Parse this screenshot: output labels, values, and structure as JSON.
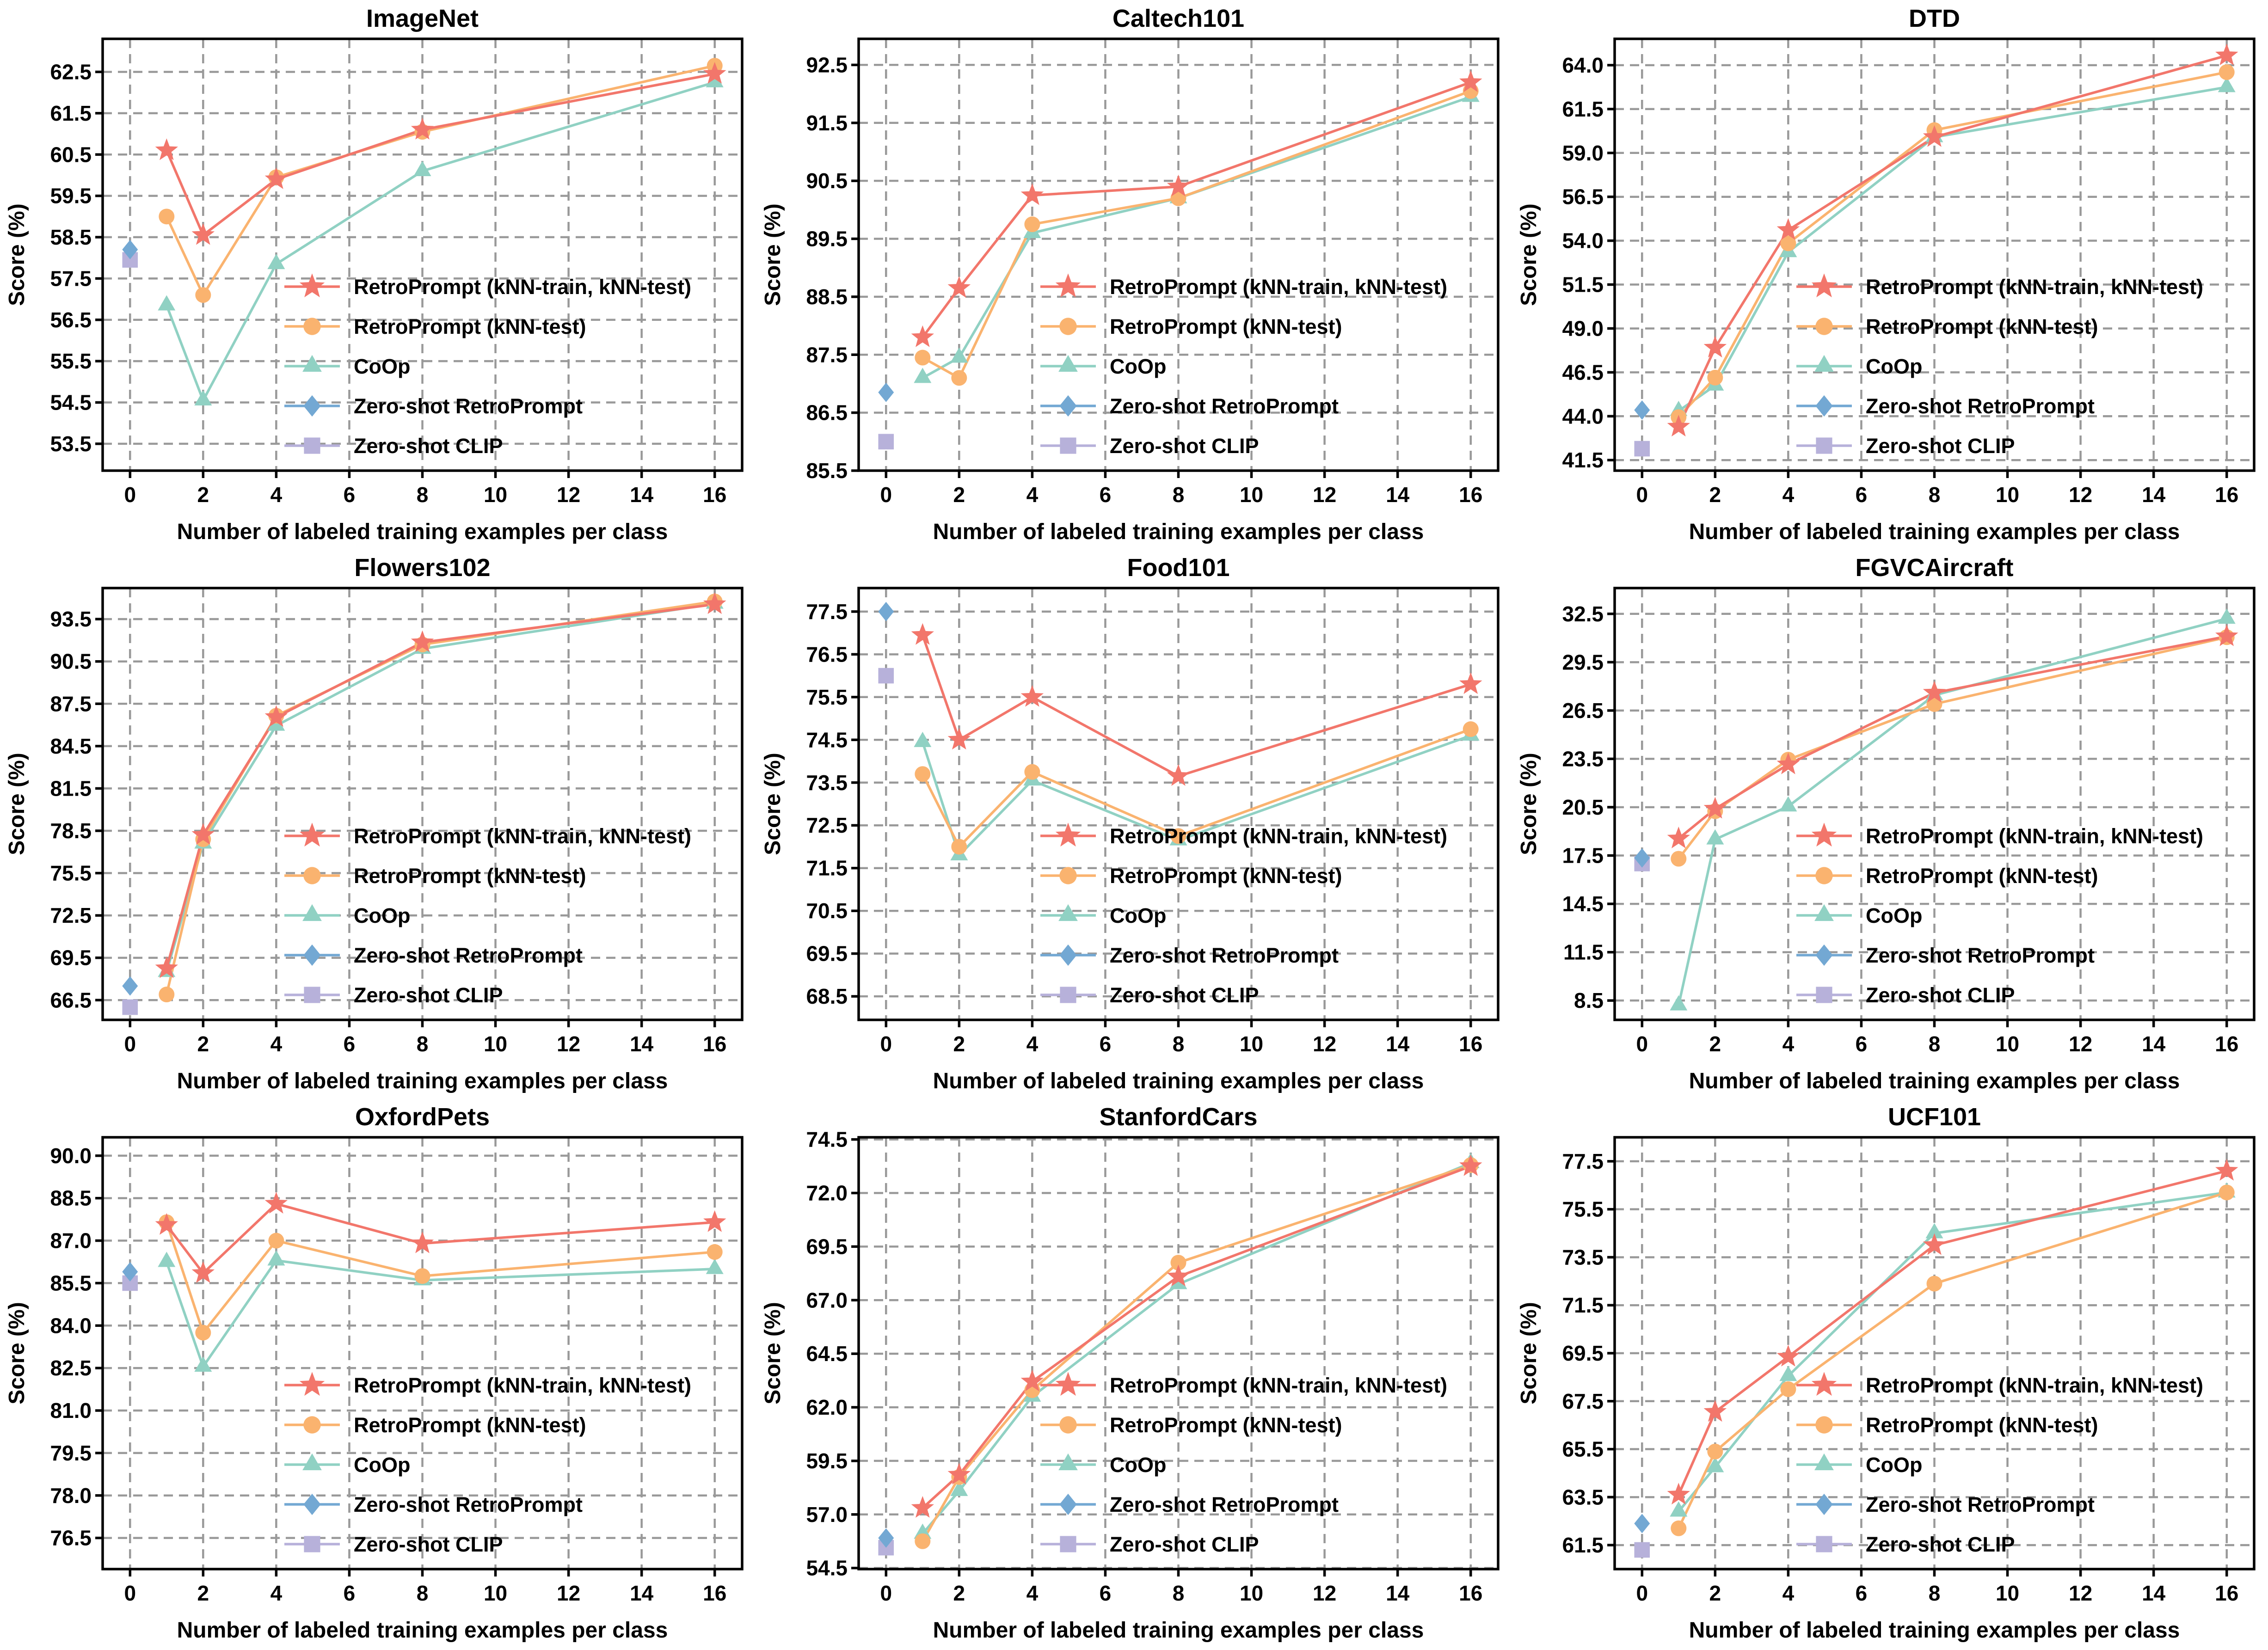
{
  "figure": {
    "background": "#ffffff",
    "axis_color": "#000000",
    "grid_color": "#999999",
    "grid_dashed": true,
    "xlabel": "Number of labeled training examples per class",
    "ylabel": "Score (%)",
    "x_ticks": [
      0,
      2,
      4,
      6,
      8,
      10,
      12,
      14,
      16
    ],
    "xlim": [
      -0.75,
      16.75
    ],
    "legend_position": "lower right",
    "legend": [
      {
        "key": "retroprompt_train_test",
        "label": "RetroPrompt (kNN-train, kNN-test)",
        "color": "#F2766B",
        "marker": "star"
      },
      {
        "key": "retroprompt_test",
        "label": "RetroPrompt (kNN-test)",
        "color": "#FAB36F",
        "marker": "circle"
      },
      {
        "key": "coop",
        "label": "CoOp",
        "color": "#90D1C3",
        "marker": "triangle"
      },
      {
        "key": "zero_shot_retroprompt",
        "label": "Zero-shot RetroPrompt",
        "color": "#73A8D3",
        "marker": "diamond"
      },
      {
        "key": "zero_shot_clip",
        "label": "Zero-shot CLIP",
        "color": "#B7B1DA",
        "marker": "square"
      }
    ]
  },
  "chart_data": [
    {
      "type": "line",
      "title": "ImageNet",
      "x": [
        1,
        2,
        4,
        8,
        16
      ],
      "y_ticks": [
        53.5,
        54.5,
        55.5,
        56.5,
        57.5,
        58.5,
        59.5,
        60.5,
        61.5,
        62.5
      ],
      "ylim": [
        52.85,
        63.3
      ],
      "series": {
        "retroprompt_train_test": [
          60.6,
          58.55,
          59.9,
          61.1,
          62.45
        ],
        "retroprompt_test": [
          59.0,
          57.1,
          59.95,
          61.05,
          62.65
        ],
        "coop": [
          56.85,
          54.55,
          57.85,
          60.1,
          62.25
        ],
        "zero_shot_retroprompt": 58.2,
        "zero_shot_clip": 57.95
      }
    },
    {
      "type": "line",
      "title": "Caltech101",
      "x": [
        1,
        2,
        4,
        8,
        16
      ],
      "y_ticks": [
        85.5,
        86.5,
        87.5,
        88.5,
        89.5,
        90.5,
        91.5,
        92.5
      ],
      "ylim": [
        85.5,
        92.95
      ],
      "series": {
        "retroprompt_train_test": [
          87.8,
          88.65,
          90.25,
          90.4,
          92.2
        ],
        "retroprompt_test": [
          87.45,
          87.1,
          89.75,
          90.2,
          92.05
        ],
        "coop": [
          87.1,
          87.45,
          89.6,
          90.2,
          91.95
        ],
        "zero_shot_retroprompt": 86.85,
        "zero_shot_clip": 86.0
      }
    },
    {
      "type": "line",
      "title": "DTD",
      "x": [
        1,
        2,
        4,
        8,
        16
      ],
      "y_ticks": [
        41.5,
        44.0,
        46.5,
        49.0,
        51.5,
        54.0,
        56.5,
        59.0,
        61.5,
        64.0
      ],
      "ylim": [
        40.9,
        65.5
      ],
      "series": {
        "retroprompt_train_test": [
          43.4,
          47.9,
          54.6,
          59.9,
          64.55
        ],
        "retroprompt_test": [
          43.95,
          46.2,
          53.85,
          60.3,
          63.6
        ],
        "coop": [
          44.3,
          45.75,
          53.35,
          59.9,
          62.75
        ],
        "zero_shot_retroprompt": 44.35,
        "zero_shot_clip": 42.15
      }
    },
    {
      "type": "line",
      "title": "Flowers102",
      "x": [
        1,
        2,
        4,
        8,
        16
      ],
      "y_ticks": [
        66.5,
        69.5,
        72.5,
        75.5,
        78.5,
        81.5,
        84.5,
        87.5,
        90.5,
        93.5
      ],
      "ylim": [
        65.1,
        95.7
      ],
      "series": {
        "retroprompt_train_test": [
          68.75,
          78.2,
          86.55,
          91.85,
          94.55
        ],
        "retroprompt_test": [
          66.9,
          77.9,
          86.65,
          91.7,
          94.75
        ],
        "coop": [
          68.5,
          77.6,
          85.95,
          91.4,
          94.6
        ],
        "zero_shot_retroprompt": 67.5,
        "zero_shot_clip": 66.0
      }
    },
    {
      "type": "line",
      "title": "Food101",
      "x": [
        1,
        2,
        4,
        8,
        16
      ],
      "y_ticks": [
        68.5,
        69.5,
        70.5,
        71.5,
        72.5,
        73.5,
        74.5,
        75.5,
        76.5,
        77.5
      ],
      "ylim": [
        67.95,
        78.05
      ],
      "series": {
        "retroprompt_train_test": [
          76.95,
          74.5,
          75.5,
          73.65,
          75.8
        ],
        "retroprompt_test": [
          73.7,
          72.0,
          73.75,
          72.25,
          74.75
        ],
        "coop": [
          74.45,
          71.8,
          73.55,
          72.15,
          74.6
        ],
        "zero_shot_retroprompt": 77.5,
        "zero_shot_clip": 76.0
      }
    },
    {
      "type": "line",
      "title": "FGVCAircraft",
      "x": [
        1,
        2,
        4,
        8,
        16
      ],
      "y_ticks": [
        8.5,
        11.5,
        14.5,
        17.5,
        20.5,
        23.5,
        26.5,
        29.5,
        32.5
      ],
      "ylim": [
        7.3,
        34.1
      ],
      "series": {
        "retroprompt_train_test": [
          18.55,
          20.4,
          23.15,
          27.6,
          31.1
        ],
        "retroprompt_test": [
          17.3,
          20.25,
          23.45,
          26.9,
          31.05
        ],
        "coop": [
          8.2,
          18.5,
          20.55,
          27.45,
          32.2
        ],
        "zero_shot_retroprompt": 17.35,
        "zero_shot_clip": 17.0
      }
    },
    {
      "type": "line",
      "title": "OxfordPets",
      "x": [
        1,
        2,
        4,
        8,
        16
      ],
      "y_ticks": [
        76.5,
        78.0,
        79.5,
        81.0,
        82.5,
        84.0,
        85.5,
        87.0,
        88.5,
        90.0
      ],
      "ylim": [
        75.4,
        90.65
      ],
      "series": {
        "retroprompt_train_test": [
          87.55,
          85.85,
          88.3,
          86.9,
          87.65
        ],
        "retroprompt_test": [
          87.65,
          83.75,
          87.0,
          85.75,
          86.6
        ],
        "coop": [
          86.25,
          82.55,
          86.3,
          85.6,
          86.0
        ],
        "zero_shot_retroprompt": 85.9,
        "zero_shot_clip": 85.5
      }
    },
    {
      "type": "line",
      "title": "StanfordCars",
      "x": [
        1,
        2,
        4,
        8,
        16
      ],
      "y_ticks": [
        54.5,
        57.0,
        59.5,
        62.0,
        64.5,
        67.0,
        69.5,
        72.0,
        74.5
      ],
      "ylim": [
        54.45,
        74.6
      ],
      "series": {
        "retroprompt_train_test": [
          57.3,
          58.85,
          63.2,
          68.1,
          73.25
        ],
        "retroprompt_test": [
          55.75,
          58.75,
          62.8,
          68.75,
          73.3
        ],
        "coop": [
          56.1,
          58.1,
          62.5,
          67.75,
          73.4
        ],
        "zero_shot_retroprompt": 55.9,
        "zero_shot_clip": 55.45
      }
    },
    {
      "type": "line",
      "title": "UCF101",
      "x": [
        1,
        2,
        4,
        8,
        16
      ],
      "y_ticks": [
        61.5,
        63.5,
        65.5,
        67.5,
        69.5,
        71.5,
        73.5,
        75.5,
        77.5
      ],
      "ylim": [
        60.5,
        78.5
      ],
      "series": {
        "retroprompt_train_test": [
          63.6,
          67.05,
          69.35,
          74.0,
          77.1
        ],
        "retroprompt_test": [
          62.2,
          65.4,
          68.0,
          72.4,
          76.2
        ],
        "coop": [
          62.9,
          64.75,
          68.55,
          74.5,
          76.2
        ],
        "zero_shot_retroprompt": 62.4,
        "zero_shot_clip": 61.3
      }
    }
  ]
}
